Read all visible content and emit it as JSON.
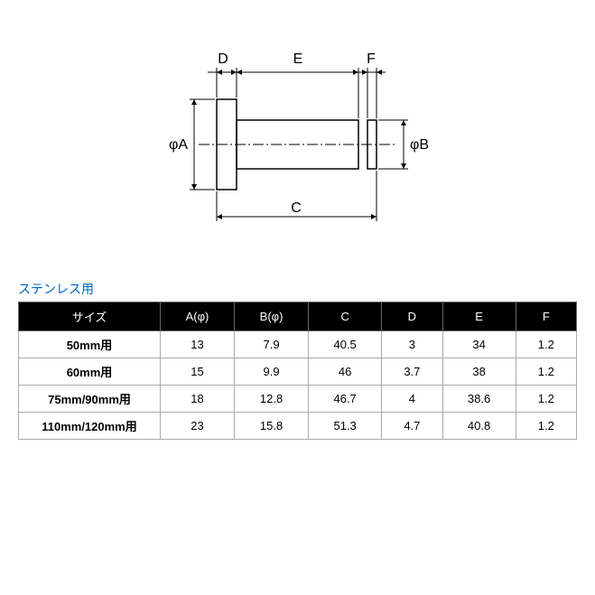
{
  "diagram": {
    "labels": {
      "D": "D",
      "E": "E",
      "F": "F",
      "C": "C",
      "phiA": "φA",
      "phiB": "φB"
    },
    "colors": {
      "stroke": "#000000",
      "fill_none": "none",
      "centerline": "#000000"
    },
    "stroke_width": 1.5,
    "font_size": 16
  },
  "section_title": "ステンレス用",
  "table": {
    "columns": [
      "サイズ",
      "A(φ)",
      "B(φ)",
      "C",
      "D",
      "E",
      "F"
    ],
    "rows": [
      [
        "50mm用",
        "13",
        "7.9",
        "40.5",
        "3",
        "34",
        "1.2"
      ],
      [
        "60mm用",
        "15",
        "9.9",
        "46",
        "3.7",
        "38",
        "1.2"
      ],
      [
        "75mm/90mm用",
        "18",
        "12.8",
        "46.7",
        "4",
        "38.6",
        "1.2"
      ],
      [
        "110mm/120mm用",
        "23",
        "15.8",
        "51.3",
        "4.7",
        "40.8",
        "1.2"
      ]
    ]
  }
}
